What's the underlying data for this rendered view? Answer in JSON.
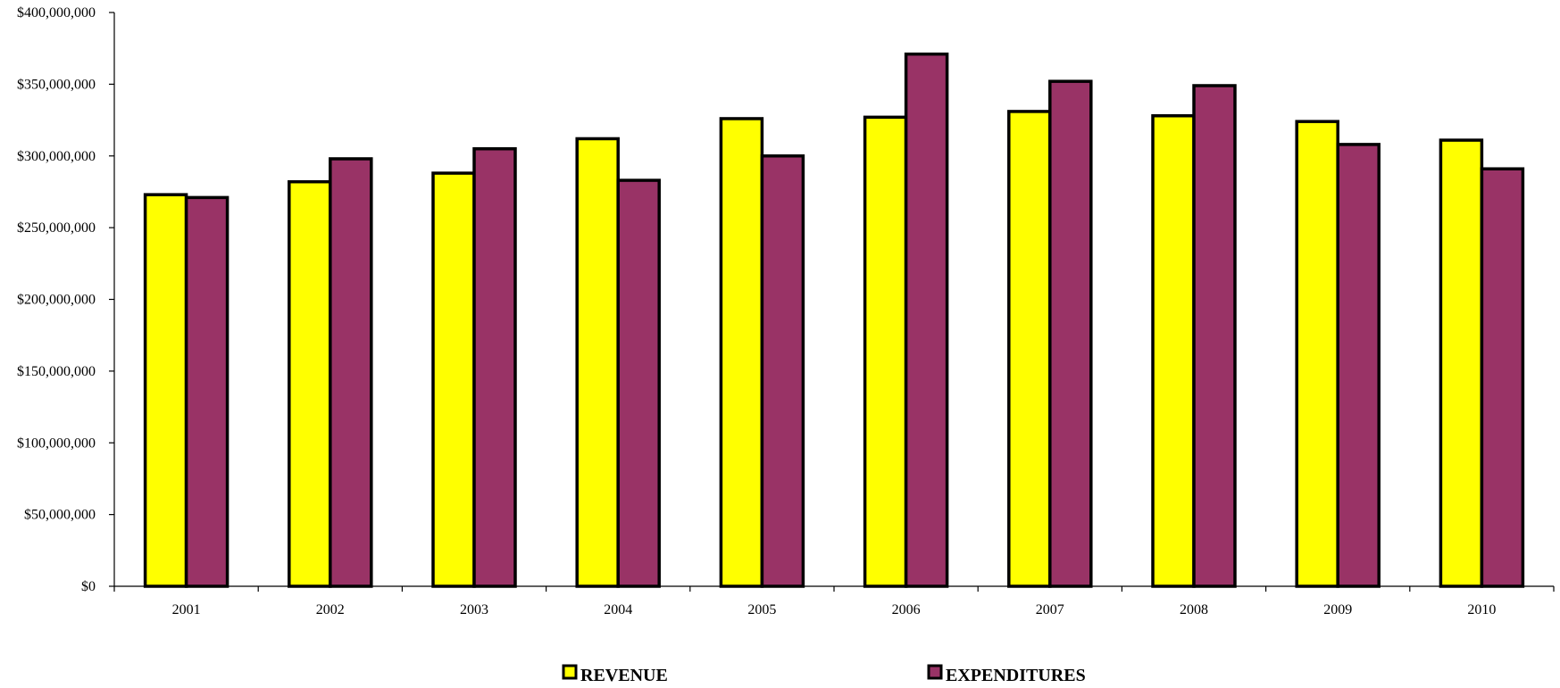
{
  "chart_data": {
    "type": "bar",
    "title": "",
    "xlabel": "",
    "ylabel": "",
    "categories": [
      "2001",
      "2002",
      "2003",
      "2004",
      "2005",
      "2006",
      "2007",
      "2008",
      "2009",
      "2010"
    ],
    "series": [
      {
        "name": "REVENUE",
        "color": "#FFFF00",
        "values": [
          273000000,
          282000000,
          288000000,
          312000000,
          326000000,
          327000000,
          331000000,
          328000000,
          324000000,
          311000000
        ]
      },
      {
        "name": "EXPENDITURES",
        "color": "#993366",
        "values": [
          271000000,
          298000000,
          305000000,
          283000000,
          300000000,
          371000000,
          352000000,
          349000000,
          308000000,
          291000000
        ]
      }
    ],
    "ylim": [
      0,
      400000000
    ],
    "yticks": [
      0,
      50000000,
      100000000,
      150000000,
      200000000,
      250000000,
      300000000,
      350000000,
      400000000
    ],
    "ytick_labels": [
      "$0",
      "$50,000,000",
      "$100,000,000",
      "$150,000,000",
      "$200,000,000",
      "$250,000,000",
      "$300,000,000",
      "$350,000,000",
      "$400,000,000"
    ],
    "grid": false,
    "legend": {
      "position": "bottom"
    },
    "bar_outline_color": "#000000"
  }
}
